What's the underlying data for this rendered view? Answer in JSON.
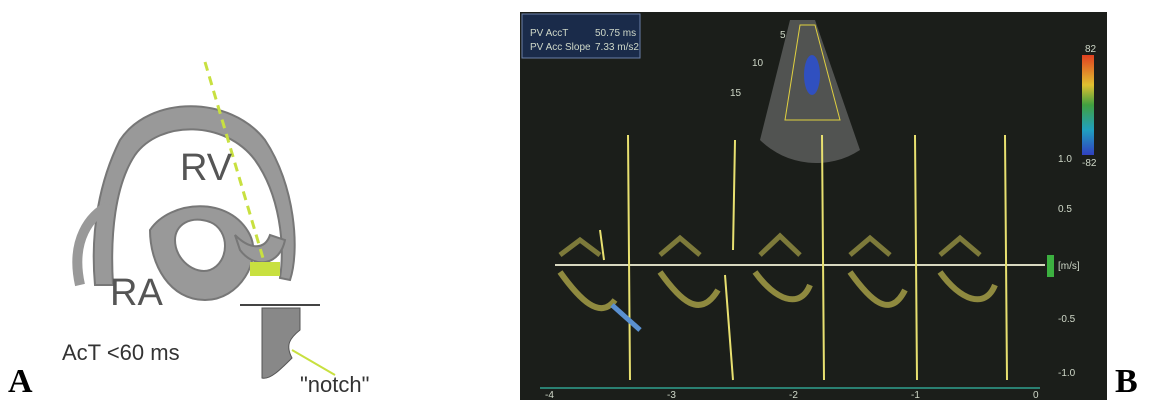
{
  "panels": [
    {
      "label": "A",
      "texts": {
        "rv": "RV",
        "ra": "RA",
        "act": "AcT <60 ms",
        "notch": "\"notch\""
      }
    },
    {
      "label": "B",
      "measurements": [
        {
          "name": "PV AccT",
          "value": "50.75 ms"
        },
        {
          "name": "PV Acc Slope",
          "value": "7.33 m/s2"
        }
      ],
      "velocity_scale": [
        "1.0",
        "0.5",
        "[m/s]",
        "-0.5",
        "-1.0"
      ],
      "depth_marks": [
        "5",
        "10",
        "15"
      ],
      "color_scale": [
        "82",
        "-82"
      ],
      "time_marks": [
        "-4",
        "-3",
        "-2",
        "-1",
        "0"
      ]
    }
  ]
}
